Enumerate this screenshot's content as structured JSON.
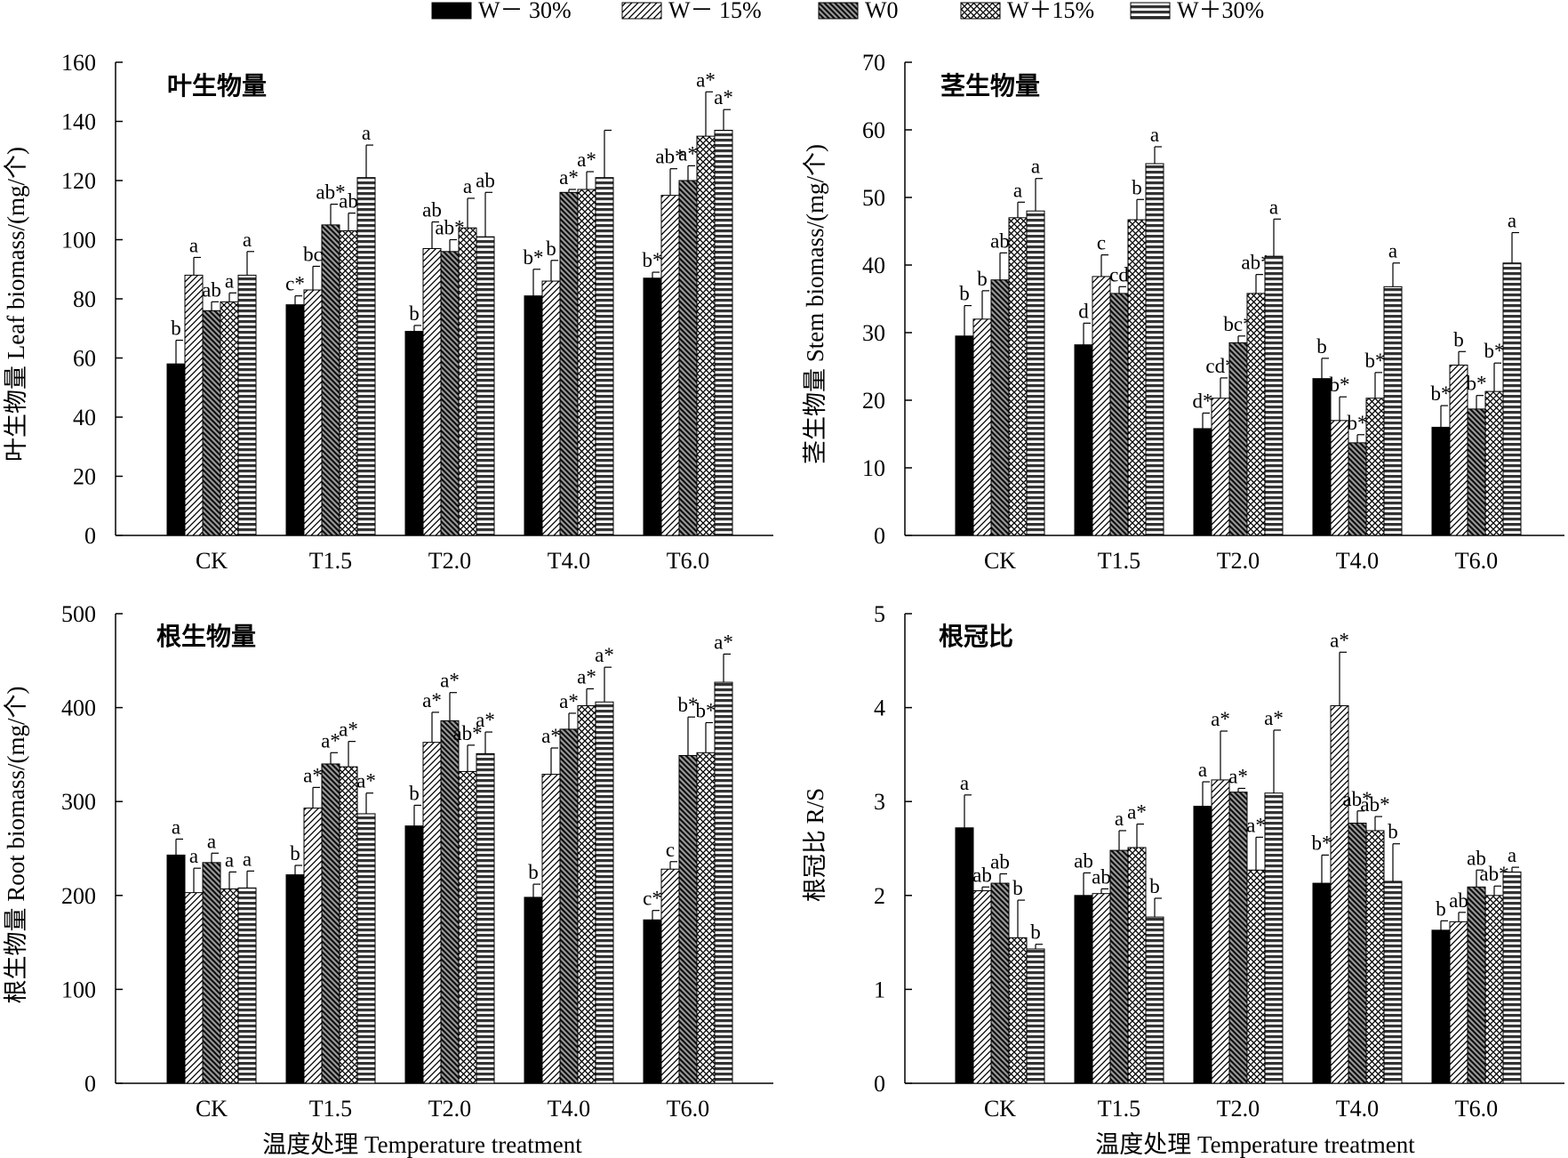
{
  "legend": {
    "items": [
      {
        "label": "W－ 30%",
        "pattern": "solid-black"
      },
      {
        "label": "W－ 15%",
        "pattern": "light-diagonal"
      },
      {
        "label": "W0",
        "pattern": "dark-diagonal"
      },
      {
        "label": "W＋15%",
        "pattern": "crosshatch"
      },
      {
        "label": "W＋30%",
        "pattern": "horizontal-lines"
      }
    ]
  },
  "chart_data": [
    {
      "type": "bar",
      "title": "叶生物量",
      "ylabel": "叶生物量 Leaf biomass/(mg/个)",
      "xlabel": "",
      "ylim": [
        0,
        160
      ],
      "yticks": [
        0,
        20,
        40,
        60,
        80,
        100,
        120,
        140,
        160
      ],
      "categories": [
        "CK",
        "T1.5",
        "T2.0",
        "T4.0",
        "T6.0"
      ],
      "series": [
        {
          "name": "W－ 30%",
          "values": [
            58,
            78,
            69,
            81,
            87
          ],
          "errors": [
            8,
            3,
            2,
            9,
            2
          ],
          "labels": [
            "b",
            "c*",
            "b",
            "b*",
            "b*"
          ]
        },
        {
          "name": "W－ 15%",
          "values": [
            88,
            83,
            97,
            86,
            115
          ],
          "errors": [
            6,
            8,
            9,
            7,
            9
          ],
          "labels": [
            "a",
            "bc",
            "ab",
            "b",
            "ab*"
          ]
        },
        {
          "name": "W0",
          "values": [
            76,
            105,
            96,
            116,
            120
          ],
          "errors": [
            3,
            7,
            4,
            1,
            5
          ],
          "labels": [
            "ab",
            "ab*",
            "ab*",
            "a*",
            "a*"
          ]
        },
        {
          "name": "W＋15%",
          "values": [
            79,
            103,
            104,
            117,
            135
          ],
          "errors": [
            3,
            6,
            10,
            6,
            15
          ],
          "labels": [
            "a",
            "ab",
            "a",
            "a*",
            "a*"
          ]
        },
        {
          "name": "W＋30%",
          "values": [
            88,
            121,
            101,
            121,
            137
          ],
          "errors": [
            8,
            11,
            15,
            16,
            7
          ],
          "labels": [
            "a",
            "a",
            "ab",
            "",
            "a*"
          ]
        }
      ]
    },
    {
      "type": "bar",
      "title": "茎生物量",
      "ylabel": "茎生物量 Stem biomass/(mg/个)",
      "xlabel": "",
      "ylim": [
        0,
        70
      ],
      "yticks": [
        0,
        10,
        20,
        30,
        40,
        50,
        60,
        70
      ],
      "categories": [
        "CK",
        "T1.5",
        "T2.0",
        "T4.0",
        "T6.0"
      ],
      "series": [
        {
          "name": "W－ 30%",
          "values": [
            29.5,
            28.2,
            15.8,
            23.2,
            16
          ],
          "errors": [
            4.5,
            3.2,
            2.3,
            3,
            3.2
          ],
          "labels": [
            "b",
            "d",
            "d*",
            "b",
            "b*"
          ]
        },
        {
          "name": "W－ 15%",
          "values": [
            32,
            38.3,
            20.3,
            17,
            25.2
          ],
          "errors": [
            4.2,
            3.2,
            3,
            3.5,
            2
          ],
          "labels": [
            "b",
            "c",
            "cd*",
            "b*",
            "b"
          ]
        },
        {
          "name": "W0",
          "values": [
            37.8,
            35.8,
            28.5,
            13.7,
            18.7
          ],
          "errors": [
            4,
            1,
            1,
            1.2,
            2
          ],
          "labels": [
            "ab",
            "cd",
            "bc*",
            "b*",
            "b*"
          ]
        },
        {
          "name": "W＋15%",
          "values": [
            47,
            46.7,
            35.8,
            20.3,
            21.3
          ],
          "errors": [
            2.3,
            3,
            2.8,
            3.8,
            4.2
          ],
          "labels": [
            "a",
            "b",
            "ab*",
            "b*",
            "b*"
          ]
        },
        {
          "name": "W＋30%",
          "values": [
            48,
            55,
            41.3,
            36.8,
            40.3
          ],
          "errors": [
            4.8,
            2.5,
            5.5,
            3.5,
            4.5
          ],
          "labels": [
            "a",
            "a",
            "a",
            "a",
            "a"
          ]
        }
      ]
    },
    {
      "type": "bar",
      "title": "根生物量",
      "ylabel": "根生物量 Root biomass/(mg/个)",
      "xlabel": "温度处理 Temperature treatment",
      "ylim": [
        0,
        500
      ],
      "yticks": [
        0,
        100,
        200,
        300,
        400,
        500
      ],
      "categories": [
        "CK",
        "T1.5",
        "T2.0",
        "T4.0",
        "T6.0"
      ],
      "series": [
        {
          "name": "W－ 30%",
          "values": [
            243,
            222,
            274,
            198,
            174
          ],
          "errors": [
            17,
            10,
            22,
            14,
            10
          ],
          "labels": [
            "a",
            "b",
            "b",
            "b",
            "c*"
          ]
        },
        {
          "name": "W－ 15%",
          "values": [
            203,
            293,
            363,
            329,
            228
          ],
          "errors": [
            26,
            22,
            32,
            28,
            8
          ],
          "labels": [
            "a",
            "a*",
            "a*",
            "a*",
            "c"
          ]
        },
        {
          "name": "W0",
          "values": [
            235,
            340,
            386,
            377,
            349
          ],
          "errors": [
            10,
            12,
            30,
            17,
            41
          ],
          "labels": [
            "a",
            "a*",
            "a*",
            "a*",
            "b*"
          ]
        },
        {
          "name": "W＋15%",
          "values": [
            207,
            337,
            332,
            402,
            352
          ],
          "errors": [
            18,
            27,
            28,
            18,
            32
          ],
          "labels": [
            "a",
            "a*",
            "ab*",
            "a*",
            "b*"
          ]
        },
        {
          "name": "W＋30%",
          "values": [
            208,
            287,
            351,
            406,
            427
          ],
          "errors": [
            18,
            22,
            23,
            37,
            30
          ],
          "labels": [
            "a",
            "a*",
            "a*",
            "a*",
            "a*"
          ]
        }
      ]
    },
    {
      "type": "bar",
      "title": "根冠比",
      "ylabel": "根冠比 R/S",
      "xlabel": "温度处理 Temperature treatment",
      "ylim": [
        0,
        5
      ],
      "yticks": [
        0,
        1,
        2,
        3,
        4,
        5
      ],
      "categories": [
        "CK",
        "T1.5",
        "T2.0",
        "T4.0",
        "T6.0"
      ],
      "series": [
        {
          "name": "W－ 30%",
          "values": [
            2.72,
            2.0,
            2.95,
            2.13,
            1.63
          ],
          "errors": [
            0.35,
            0.24,
            0.26,
            0.3,
            0.1
          ],
          "labels": [
            "a",
            "ab",
            "a",
            "b*",
            "b"
          ]
        },
        {
          "name": "W－ 15%",
          "values": [
            2.05,
            2.02,
            3.23,
            4.02,
            1.72
          ],
          "errors": [
            0.04,
            0.05,
            0.52,
            0.57,
            0.1
          ],
          "labels": [
            "ab",
            "ab",
            "a*",
            "a*",
            "ab"
          ]
        },
        {
          "name": "W0",
          "values": [
            2.13,
            2.48,
            3.1,
            2.77,
            2.09
          ],
          "errors": [
            0.1,
            0.21,
            0.04,
            0.13,
            0.18
          ],
          "labels": [
            "ab",
            "a",
            "a*",
            "ab*",
            "ab"
          ]
        },
        {
          "name": "W＋15%",
          "values": [
            1.55,
            2.51,
            2.27,
            2.69,
            2.0
          ],
          "errors": [
            0.4,
            0.25,
            0.35,
            0.15,
            0.1
          ],
          "labels": [
            "b",
            "a*",
            "a*",
            "ab*",
            "ab*"
          ]
        },
        {
          "name": "W＋30%",
          "values": [
            1.43,
            1.77,
            3.09,
            2.15,
            2.25
          ],
          "errors": [
            0.05,
            0.2,
            0.67,
            0.4,
            0.05
          ],
          "labels": [
            "b",
            "b",
            "a*",
            "b",
            "a"
          ]
        }
      ]
    }
  ]
}
